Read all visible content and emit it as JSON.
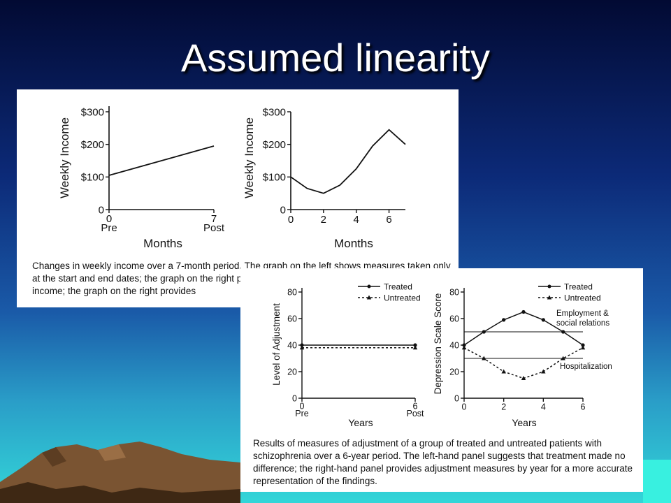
{
  "slide": {
    "title": "Assumed linearity"
  },
  "captions": {
    "income": "Changes in weekly income over a 7-month period. The graph on the left shows measures taken only at the start and end dates; the graph on the right provides monthly measures and shows a rise in income; the graph on the right provides",
    "schizophrenia": "Results of measures of adjustment of a group of treated and untreated patients with schizophrenia over a 6-year period. The left-hand panel suggests that treatment made no difference; the right-hand panel provides adjustment measures by year for a more accurate representation of the findings."
  },
  "chart_data": [
    {
      "id": "income_prepost",
      "type": "line",
      "ylabel": "Weekly Income",
      "xlabel": "Months",
      "yticks": [
        "0",
        "$100",
        "$200",
        "$300"
      ],
      "ylim": [
        0,
        300
      ],
      "xlim": [
        0,
        7
      ],
      "x_tick_labels": [
        {
          "x": 0,
          "label": "0",
          "sublabel": "Pre"
        },
        {
          "x": 7,
          "label": "7",
          "sublabel": "Post"
        }
      ],
      "series": [
        {
          "x": [
            0,
            7
          ],
          "y": [
            105,
            195
          ]
        }
      ]
    },
    {
      "id": "income_monthly",
      "type": "line",
      "ylabel": "Weekly Income",
      "xlabel": "Months",
      "yticks": [
        "0",
        "$100",
        "$200",
        "$300"
      ],
      "ylim": [
        0,
        300
      ],
      "xlim": [
        0,
        7
      ],
      "xticks": [
        0,
        2,
        4,
        6
      ],
      "series": [
        {
          "x": [
            0,
            1,
            2,
            3,
            4,
            5,
            6,
            7
          ],
          "y": [
            100,
            65,
            50,
            75,
            125,
            195,
            245,
            200
          ]
        }
      ]
    },
    {
      "id": "adjustment_prepost",
      "type": "line",
      "ylabel": "Level of Adjustment",
      "xlabel": "Years",
      "yticks": [
        0,
        20,
        40,
        60,
        80
      ],
      "ylim": [
        0,
        80
      ],
      "xlim": [
        0,
        6
      ],
      "x_tick_labels": [
        {
          "x": 0,
          "label": "0",
          "sublabel": "Pre"
        },
        {
          "x": 6,
          "label": "6",
          "sublabel": "Post"
        }
      ],
      "legend": [
        "Treated",
        "Untreated"
      ],
      "series": [
        {
          "name": "Treated",
          "style": "solid",
          "marker": "circle",
          "x": [
            0,
            6
          ],
          "y": [
            40,
            40
          ]
        },
        {
          "name": "Untreated",
          "style": "dashed",
          "marker": "triangle",
          "x": [
            0,
            6
          ],
          "y": [
            38,
            38
          ]
        }
      ]
    },
    {
      "id": "depression_yearly",
      "type": "line",
      "ylabel": "Depression Scale Score",
      "xlabel": "Years",
      "yticks": [
        0,
        20,
        40,
        60,
        80
      ],
      "ylim": [
        0,
        80
      ],
      "xlim": [
        0,
        6
      ],
      "xticks": [
        0,
        2,
        4,
        6
      ],
      "legend": [
        "Treated",
        "Untreated"
      ],
      "reference_lines": [
        {
          "y": 50,
          "label": "Employment & social relations"
        },
        {
          "y": 30,
          "label": "Hospitalization"
        }
      ],
      "series": [
        {
          "name": "Treated",
          "style": "solid",
          "marker": "circle",
          "x": [
            0,
            1,
            2,
            3,
            4,
            5,
            6
          ],
          "y": [
            40,
            50,
            59,
            65,
            59,
            50,
            40
          ]
        },
        {
          "name": "Untreated",
          "style": "dashed",
          "marker": "triangle",
          "x": [
            0,
            1,
            2,
            3,
            4,
            5,
            6
          ],
          "y": [
            38,
            30,
            20,
            15,
            20,
            30,
            38
          ]
        }
      ]
    }
  ]
}
